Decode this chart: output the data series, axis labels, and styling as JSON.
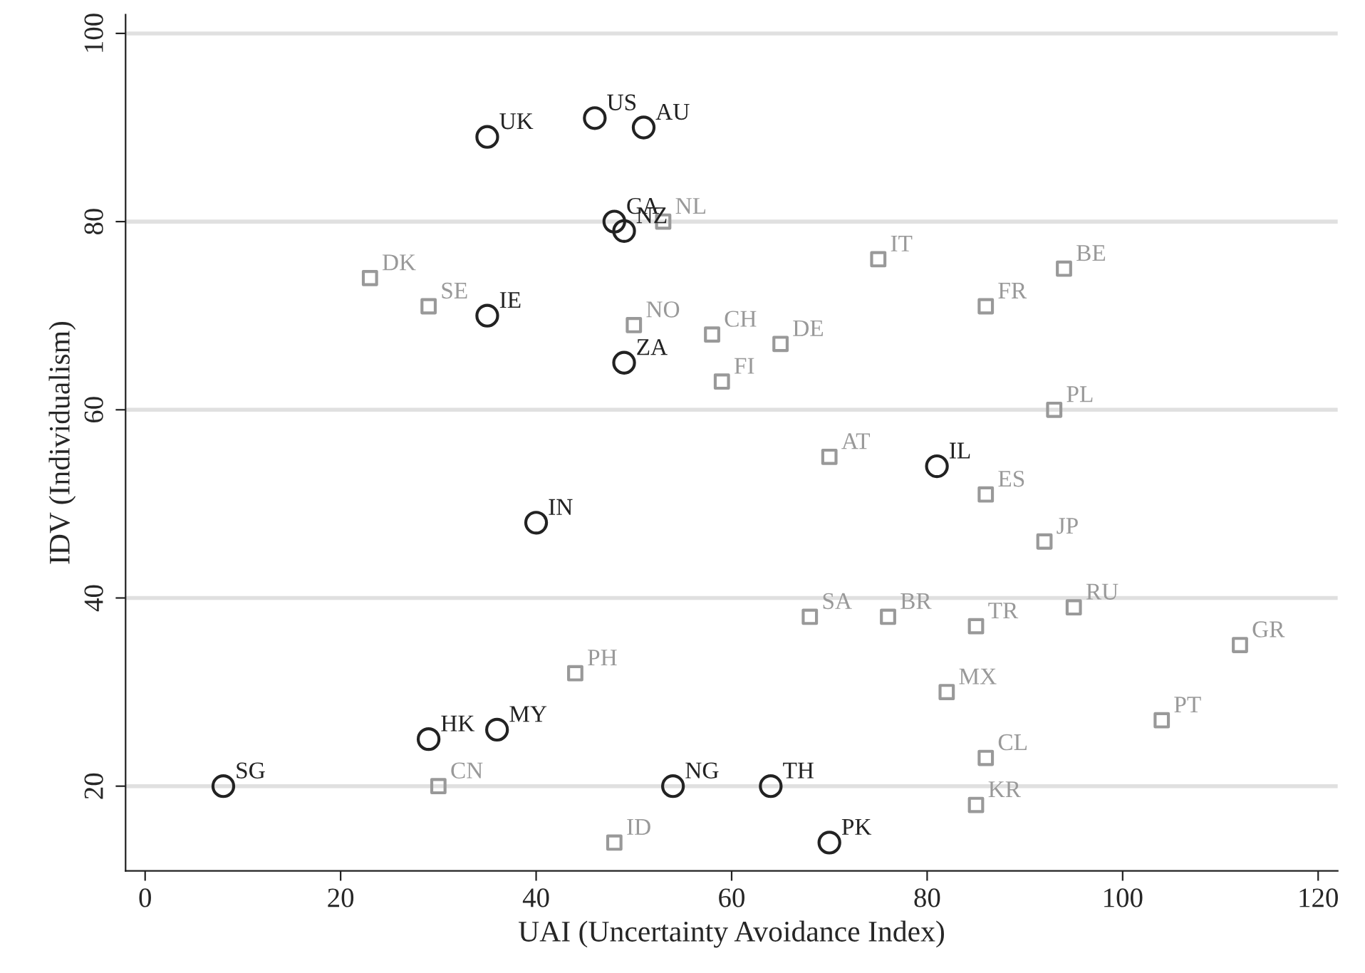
{
  "chart_data": {
    "type": "scatter",
    "xlabel": "UAI (Uncertainty Avoidance Index)",
    "ylabel": "IDV (Individualism)",
    "xlim": [
      -2,
      122
    ],
    "ylim": [
      11,
      102
    ],
    "xticks": [
      0,
      20,
      40,
      60,
      80,
      100,
      120
    ],
    "yticks": [
      20,
      40,
      60,
      80,
      100
    ],
    "grid": "y",
    "series": [
      {
        "color": "#222222",
        "marker": "circle",
        "x": [
          35,
          46,
          51,
          48,
          49,
          35,
          49,
          81,
          40,
          29,
          36,
          8,
          54,
          64,
          70
        ],
        "values": [
          89,
          91,
          90,
          80,
          79,
          70,
          65,
          54,
          48,
          25,
          26,
          20,
          20,
          20,
          14
        ],
        "value_labels": [
          "UK",
          "US",
          "AU",
          "CA",
          "NZ",
          "IE",
          "ZA",
          "IL",
          "IN",
          "HK",
          "MY",
          "SG",
          "NG",
          "TH",
          "PK"
        ]
      },
      {
        "color": "#999999",
        "marker": "square",
        "x": [
          53,
          23,
          29,
          50,
          58,
          65,
          59,
          75,
          94,
          86,
          93,
          70,
          86,
          92,
          68,
          76,
          85,
          95,
          112,
          44,
          82,
          104,
          86,
          30,
          85,
          48
        ],
        "values": [
          80,
          74,
          71,
          69,
          68,
          67,
          63,
          76,
          75,
          71,
          60,
          55,
          51,
          46,
          38,
          38,
          37,
          39,
          35,
          32,
          30,
          27,
          23,
          20,
          18,
          14
        ],
        "value_labels": [
          "NL",
          "DK",
          "SE",
          "NO",
          "CH",
          "DE",
          "FI",
          "IT",
          "BE",
          "FR",
          "PL",
          "AT",
          "ES",
          "JP",
          "SA",
          "BR",
          "TR",
          "RU",
          "GR",
          "PH",
          "MX",
          "PT",
          "CL",
          "CN",
          "KR",
          "ID"
        ]
      }
    ]
  }
}
